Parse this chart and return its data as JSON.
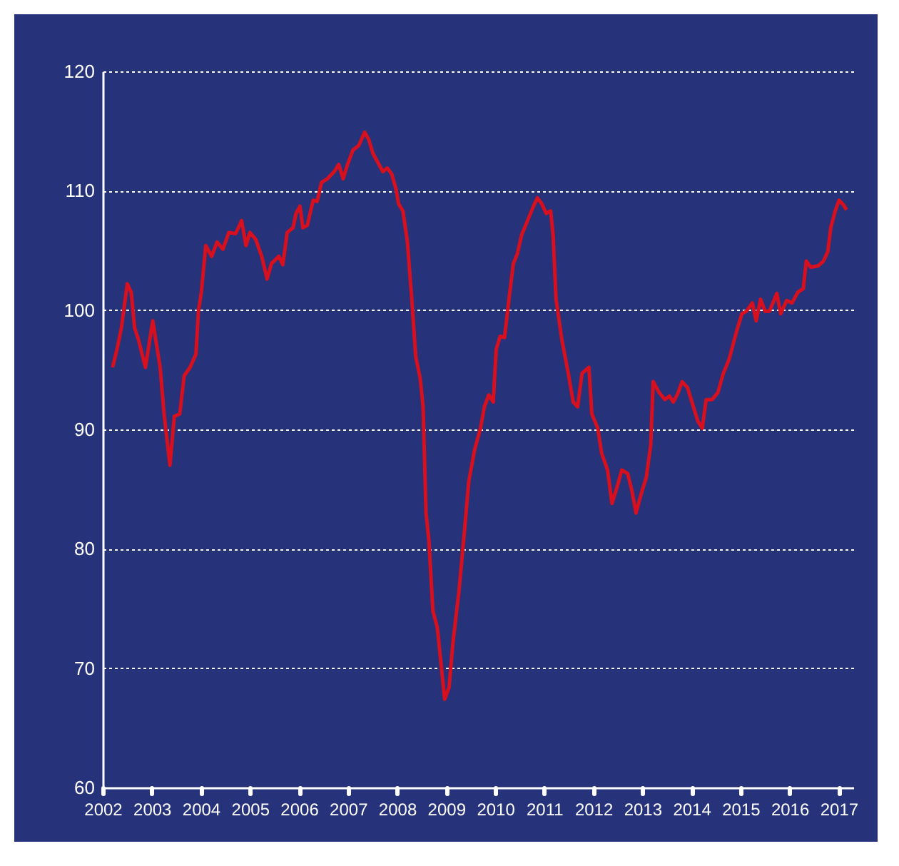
{
  "chart_data": {
    "type": "line",
    "x": [
      2002.2,
      2002.29,
      2002.38,
      2002.5,
      2002.58,
      2002.65,
      2002.73,
      2002.87,
      2003.02,
      2003.17,
      2003.25,
      2003.37,
      2003.46,
      2003.57,
      2003.66,
      2003.78,
      2003.9,
      2003.95,
      2004.01,
      2004.1,
      2004.22,
      2004.33,
      2004.45,
      2004.57,
      2004.71,
      2004.83,
      2004.92,
      2005.0,
      2005.12,
      2005.24,
      2005.35,
      2005.44,
      2005.59,
      2005.67,
      2005.76,
      2005.88,
      2005.94,
      2006.02,
      2006.08,
      2006.17,
      2006.29,
      2006.37,
      2006.46,
      2006.58,
      2006.72,
      2006.81,
      2006.9,
      2006.99,
      2007.1,
      2007.22,
      2007.34,
      2007.42,
      2007.51,
      2007.63,
      2007.71,
      2007.8,
      2007.89,
      2007.98,
      2008.03,
      2008.12,
      2008.21,
      2008.3,
      2008.38,
      2008.47,
      2008.53,
      2008.59,
      2008.65,
      2008.73,
      2008.82,
      2008.91,
      2008.97,
      2009.06,
      2009.14,
      2009.26,
      2009.38,
      2009.46,
      2009.58,
      2009.7,
      2009.78,
      2009.87,
      2009.96,
      2010.02,
      2010.1,
      2010.19,
      2010.28,
      2010.37,
      2010.45,
      2010.54,
      2010.66,
      2010.78,
      2010.86,
      2010.95,
      2011.04,
      2011.13,
      2011.18,
      2011.24,
      2011.36,
      2011.48,
      2011.59,
      2011.68,
      2011.77,
      2011.91,
      2011.97,
      2012.09,
      2012.17,
      2012.29,
      2012.38,
      2012.5,
      2012.58,
      2012.7,
      2012.79,
      2012.87,
      2012.99,
      2013.08,
      2013.17,
      2013.22,
      2013.34,
      2013.46,
      2013.55,
      2013.63,
      2013.72,
      2013.81,
      2013.92,
      2014.01,
      2014.13,
      2014.22,
      2014.3,
      2014.42,
      2014.54,
      2014.65,
      2014.77,
      2014.86,
      2014.94,
      2015.03,
      2015.12,
      2015.24,
      2015.32,
      2015.41,
      2015.5,
      2015.59,
      2015.74,
      2015.82,
      2015.94,
      2016.05,
      2016.17,
      2016.28,
      2016.34,
      2016.43,
      2016.58,
      2016.69,
      2016.78,
      2016.84,
      2016.93,
      2017.01,
      2017.1,
      2017.16
    ],
    "series": [
      {
        "color": "#d7101f",
        "values": [
          95.2,
          96.7,
          98.5,
          102.2,
          101.5,
          98.5,
          97.5,
          95.2,
          99.1,
          95.2,
          91.3,
          87.0,
          91.1,
          91.3,
          94.5,
          95.2,
          96.3,
          99.9,
          101.5,
          105.4,
          104.5,
          105.7,
          105.1,
          106.5,
          106.4,
          107.5,
          105.4,
          106.5,
          105.9,
          104.5,
          102.6,
          103.9,
          104.5,
          103.8,
          106.5,
          106.9,
          108.1,
          108.7,
          106.9,
          107.1,
          109.2,
          109.1,
          110.7,
          111.0,
          111.6,
          112.2,
          111.0,
          112.2,
          113.4,
          113.8,
          114.9,
          114.3,
          113.1,
          112.2,
          111.6,
          111.9,
          111.4,
          110.1,
          108.9,
          108.3,
          105.7,
          100.9,
          96.1,
          94.3,
          91.9,
          83.0,
          80.6,
          74.8,
          73.4,
          69.8,
          67.4,
          68.4,
          72.2,
          76.4,
          81.8,
          85.6,
          88.3,
          90.1,
          91.9,
          92.9,
          92.3,
          96.7,
          97.8,
          97.7,
          100.9,
          103.9,
          104.7,
          106.3,
          107.5,
          108.7,
          109.4,
          108.9,
          108.1,
          108.3,
          106.3,
          100.9,
          97.5,
          94.9,
          92.3,
          91.9,
          94.7,
          95.2,
          91.3,
          90.1,
          88.0,
          86.6,
          83.8,
          85.4,
          86.6,
          86.3,
          84.8,
          83.0,
          84.8,
          86.0,
          88.7,
          94.0,
          93.1,
          92.5,
          92.8,
          92.3,
          93.0,
          94.0,
          93.5,
          92.3,
          90.7,
          90.1,
          92.5,
          92.5,
          93.1,
          94.7,
          95.9,
          97.3,
          98.5,
          99.7,
          99.9,
          100.6,
          99.1,
          100.9,
          99.9,
          99.9,
          101.4,
          99.7,
          100.8,
          100.6,
          101.5,
          101.8,
          104.1,
          103.6,
          103.7,
          104.1,
          104.9,
          106.9,
          108.3,
          109.2,
          108.8,
          108.4
        ]
      }
    ],
    "xlim": [
      2002,
      2017.3
    ],
    "xticks": [
      2002,
      2003,
      2004,
      2005,
      2006,
      2007,
      2008,
      2009,
      2010,
      2011,
      2012,
      2013,
      2014,
      2015,
      2016,
      2017
    ],
    "ylim": [
      60,
      120
    ],
    "yticks": [
      60,
      70,
      80,
      90,
      100,
      110,
      120
    ],
    "grid": "y",
    "line_style": "solid"
  }
}
